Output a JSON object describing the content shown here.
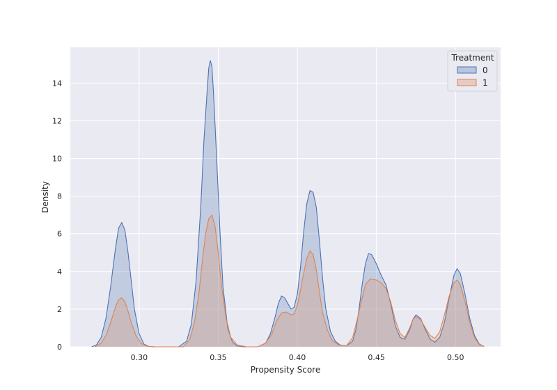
{
  "chart_data": {
    "type": "area",
    "title": "",
    "xlabel": "Propensity Score",
    "ylabel": "Density",
    "xlim": [
      0.2565,
      0.5285
    ],
    "ylim": [
      0,
      15.9
    ],
    "xticks": [
      0.3,
      0.35,
      0.4,
      0.45,
      0.5
    ],
    "xtick_labels": [
      "0.30",
      "0.35",
      "0.40",
      "0.45",
      "0.50"
    ],
    "yticks": [
      0,
      2,
      4,
      6,
      8,
      10,
      12,
      14
    ],
    "ytick_labels": [
      "0",
      "2",
      "4",
      "6",
      "8",
      "10",
      "12",
      "14"
    ],
    "grid": true,
    "legend": {
      "title": "Treatment",
      "placement": "top-right"
    },
    "series": [
      {
        "name": "0",
        "color": "#4c72b0",
        "x": [
          0.27,
          0.273,
          0.276,
          0.279,
          0.282,
          0.285,
          0.287,
          0.289,
          0.291,
          0.293,
          0.295,
          0.297,
          0.3,
          0.303,
          0.306,
          0.31,
          0.325,
          0.33,
          0.333,
          0.336,
          0.339,
          0.341,
          0.343,
          0.344,
          0.345,
          0.346,
          0.347,
          0.349,
          0.351,
          0.353,
          0.356,
          0.359,
          0.362,
          0.366,
          0.37,
          0.375,
          0.38,
          0.383,
          0.386,
          0.388,
          0.39,
          0.392,
          0.394,
          0.396,
          0.398,
          0.4,
          0.402,
          0.404,
          0.406,
          0.408,
          0.41,
          0.412,
          0.414,
          0.416,
          0.418,
          0.421,
          0.424,
          0.427,
          0.431,
          0.435,
          0.437,
          0.439,
          0.441,
          0.443,
          0.445,
          0.447,
          0.45,
          0.453,
          0.456,
          0.459,
          0.462,
          0.465,
          0.468,
          0.471,
          0.473,
          0.475,
          0.478,
          0.481,
          0.484,
          0.487,
          0.49,
          0.493,
          0.496,
          0.499,
          0.501,
          0.503,
          0.506,
          0.509,
          0.512,
          0.515,
          0.518
        ],
        "y": [
          0.0,
          0.1,
          0.5,
          1.5,
          3.2,
          5.2,
          6.3,
          6.6,
          6.2,
          5.0,
          3.5,
          2.0,
          0.7,
          0.15,
          0.02,
          0.0,
          0.0,
          0.3,
          1.2,
          3.5,
          7.5,
          11.0,
          13.6,
          14.8,
          15.2,
          14.9,
          13.5,
          10.0,
          6.3,
          3.2,
          1.0,
          0.25,
          0.05,
          0.0,
          0.0,
          0.0,
          0.2,
          0.7,
          1.6,
          2.3,
          2.7,
          2.6,
          2.3,
          2.0,
          2.1,
          2.8,
          4.2,
          6.1,
          7.6,
          8.3,
          8.2,
          7.4,
          5.6,
          3.6,
          2.0,
          0.8,
          0.3,
          0.1,
          0.05,
          0.3,
          0.9,
          2.0,
          3.3,
          4.4,
          4.95,
          4.9,
          4.4,
          3.8,
          3.3,
          2.3,
          1.1,
          0.5,
          0.4,
          0.9,
          1.45,
          1.7,
          1.5,
          0.9,
          0.4,
          0.25,
          0.5,
          1.3,
          2.6,
          3.8,
          4.15,
          3.9,
          2.8,
          1.5,
          0.6,
          0.15,
          0.02
        ]
      },
      {
        "name": "1",
        "color": "#dd8452",
        "x": [
          0.272,
          0.276,
          0.279,
          0.282,
          0.285,
          0.287,
          0.289,
          0.291,
          0.293,
          0.295,
          0.298,
          0.301,
          0.305,
          0.31,
          0.328,
          0.332,
          0.335,
          0.338,
          0.34,
          0.342,
          0.344,
          0.346,
          0.348,
          0.35,
          0.352,
          0.355,
          0.358,
          0.362,
          0.368,
          0.375,
          0.38,
          0.384,
          0.387,
          0.39,
          0.393,
          0.396,
          0.398,
          0.4,
          0.402,
          0.404,
          0.406,
          0.408,
          0.41,
          0.412,
          0.414,
          0.416,
          0.419,
          0.422,
          0.426,
          0.431,
          0.435,
          0.438,
          0.441,
          0.443,
          0.446,
          0.45,
          0.453,
          0.456,
          0.459,
          0.462,
          0.465,
          0.468,
          0.471,
          0.473,
          0.475,
          0.478,
          0.481,
          0.484,
          0.487,
          0.49,
          0.493,
          0.496,
          0.499,
          0.501,
          0.503,
          0.506,
          0.509,
          0.512,
          0.515,
          0.518
        ],
        "y": [
          0.0,
          0.2,
          0.6,
          1.3,
          2.1,
          2.5,
          2.6,
          2.4,
          1.9,
          1.3,
          0.6,
          0.2,
          0.03,
          0.0,
          0.0,
          0.4,
          1.3,
          3.0,
          4.6,
          6.0,
          6.8,
          7.0,
          6.4,
          5.0,
          3.3,
          1.5,
          0.5,
          0.1,
          0.0,
          0.0,
          0.2,
          0.7,
          1.4,
          1.8,
          1.85,
          1.7,
          1.75,
          2.2,
          3.0,
          3.9,
          4.7,
          5.1,
          4.9,
          4.1,
          2.9,
          1.8,
          0.9,
          0.35,
          0.1,
          0.05,
          0.5,
          1.5,
          2.6,
          3.3,
          3.6,
          3.55,
          3.4,
          3.1,
          2.4,
          1.4,
          0.7,
          0.5,
          1.0,
          1.45,
          1.6,
          1.45,
          1.0,
          0.6,
          0.45,
          0.8,
          1.7,
          2.7,
          3.4,
          3.55,
          3.3,
          2.4,
          1.3,
          0.5,
          0.12,
          0.02
        ]
      }
    ]
  }
}
